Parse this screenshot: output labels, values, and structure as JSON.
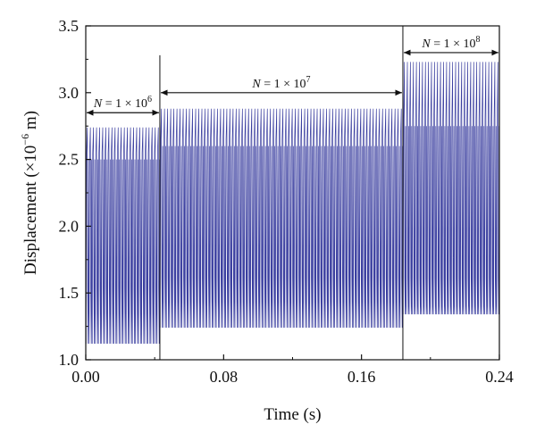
{
  "chart_data": {
    "type": "line",
    "title": "",
    "xlabel": "Time (s)",
    "ylabel_main": "Displacement (×10",
    "ylabel_exp": "−6",
    "ylabel_unit": " m)",
    "xlim": [
      0.0,
      0.24
    ],
    "ylim": [
      1.0,
      3.5
    ],
    "x_ticks": [
      0.0,
      0.08,
      0.16,
      0.24
    ],
    "x_tick_labels": [
      "0.00",
      "0.08",
      "0.16",
      "0.24"
    ],
    "y_ticks": [
      1.0,
      1.5,
      2.0,
      2.5,
      3.0,
      3.5
    ],
    "y_tick_labels": [
      "1.0",
      "1.5",
      "2.0",
      "2.5",
      "3.0",
      "3.5"
    ],
    "grid": false,
    "series_color": "#3b3fa0",
    "segments": [
      {
        "x_start": 0.0,
        "x_end": 0.043,
        "cycles": 24,
        "min": 1.12,
        "max": 2.74,
        "inner_min": 1.35,
        "inner_max": 2.55
      },
      {
        "x_start": 0.043,
        "x_end": 0.184,
        "cycles": 78,
        "min": 1.24,
        "max": 2.88,
        "inner_min": 1.43,
        "inner_max": 2.65
      },
      {
        "x_start": 0.184,
        "x_end": 0.24,
        "cycles": 32,
        "min": 1.34,
        "max": 3.23,
        "inner_min": 1.4,
        "inner_max": 2.8
      }
    ],
    "separators": [
      {
        "x": 0.043,
        "y_top": 3.28
      },
      {
        "x": 0.184,
        "y_top": 3.5
      }
    ],
    "annotations": [
      {
        "name": "n-1e6",
        "label": "N = 1 × 10",
        "exp": "6",
        "x_from": 0.0,
        "x_to": 0.043,
        "y": 2.85
      },
      {
        "name": "n-1e7",
        "label": "N = 1 × 10",
        "exp": "7",
        "x_from": 0.043,
        "x_to": 0.184,
        "y": 3.0
      },
      {
        "name": "n-1e8",
        "label": "N = 1 × 10",
        "exp": "8",
        "x_from": 0.184,
        "x_to": 0.24,
        "y": 3.3
      }
    ]
  }
}
